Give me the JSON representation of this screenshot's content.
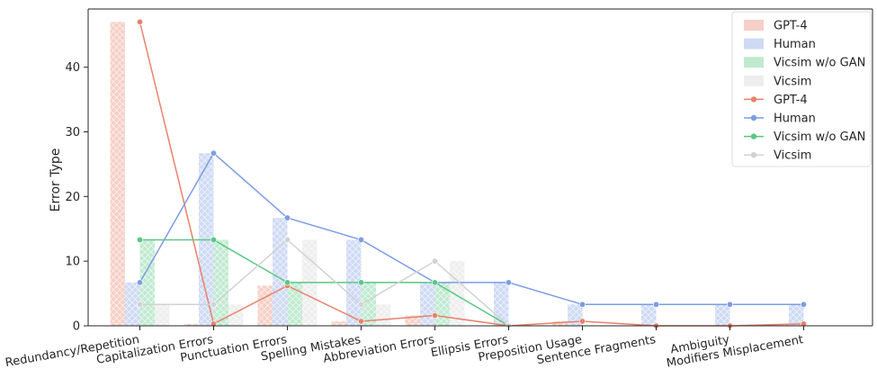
{
  "chart_data": {
    "type": "bar",
    "title": "",
    "xlabel": "",
    "ylabel": "Error Type",
    "ylim": [
      0,
      49
    ],
    "yticks": [
      0,
      10,
      20,
      30,
      40
    ],
    "grid": false,
    "legend_position": "top-right",
    "categories": [
      "Redundancy/Repetition",
      "Capitalization Errors",
      "Punctuation Errors",
      "Spelling Mistakes",
      "Abbreviation Errors",
      "Ellipsis Errors",
      "Preposition Usage",
      "Sentence Fragments",
      "Ambiguity",
      "Modifiers Misplacement"
    ],
    "series": [
      {
        "name": "GPT-4",
        "color": "#e8826a",
        "values": [
          47.0,
          0.3,
          6.2,
          0.7,
          1.6,
          0.0,
          0.7,
          0.0,
          0.0,
          0.3
        ]
      },
      {
        "name": "Human",
        "color": "#7d9de3",
        "values": [
          6.7,
          26.7,
          16.7,
          13.3,
          6.7,
          6.7,
          3.3,
          3.3,
          3.3,
          3.3
        ]
      },
      {
        "name": "Vicsim w/o GAN",
        "color": "#59c884",
        "values": [
          13.3,
          13.3,
          6.7,
          6.7,
          6.7,
          0.0,
          0.0,
          0.0,
          0.0,
          0.0
        ]
      },
      {
        "name": "Vicsim",
        "color": "#d2d2d2",
        "values": [
          3.3,
          3.3,
          13.3,
          3.3,
          10.0,
          0.0,
          0.0,
          0.0,
          0.0,
          0.0
        ]
      }
    ],
    "line_series": [
      {
        "name": "GPT-4",
        "color": "#e8826a",
        "values": [
          47.0,
          0.3,
          6.2,
          0.7,
          1.6,
          0.0,
          0.7,
          0.0,
          0.0,
          0.3
        ]
      },
      {
        "name": "Human",
        "color": "#7d9de3",
        "values": [
          6.7,
          26.7,
          16.7,
          13.3,
          6.7,
          6.7,
          3.3,
          3.3,
          3.3,
          3.3
        ]
      },
      {
        "name": "Vicsim w/o GAN",
        "color": "#59c884",
        "values": [
          13.3,
          13.3,
          6.7,
          6.7,
          6.7,
          0.0,
          null,
          null,
          null,
          null
        ]
      },
      {
        "name": "Vicsim",
        "color": "#d2d2d2",
        "values": [
          3.3,
          3.3,
          13.3,
          3.3,
          10.0,
          0.0,
          null,
          null,
          null,
          null
        ]
      }
    ]
  }
}
